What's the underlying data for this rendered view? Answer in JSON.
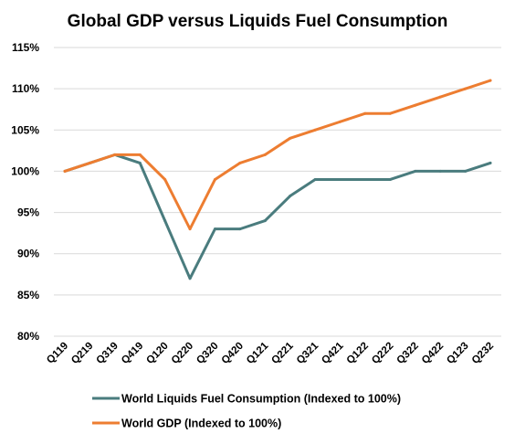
{
  "chart_data": {
    "type": "line",
    "title": "Global GDP versus Liquids Fuel Consumption",
    "categories": [
      "Q119",
      "Q219",
      "Q319",
      "Q419",
      "Q120",
      "Q220",
      "Q320",
      "Q420",
      "Q121",
      "Q221",
      "Q321",
      "Q421",
      "Q122",
      "Q222",
      "Q322",
      "Q422",
      "Q123",
      "Q232"
    ],
    "ylim": [
      80,
      115
    ],
    "yticks": [
      80,
      85,
      90,
      95,
      100,
      105,
      110,
      115
    ],
    "ytick_suffix": "%",
    "grid": true,
    "legend_position": "bottom",
    "series": [
      {
        "name": "World Liquids Fuel Consumption (Indexed to 100%)",
        "color": "#4a7c7e",
        "values": [
          100,
          101,
          102,
          101,
          94,
          87,
          93,
          93,
          94,
          97,
          99,
          99,
          99,
          99,
          100,
          100,
          100,
          101
        ]
      },
      {
        "name": "World GDP (Indexed to 100%)",
        "color": "#ed7d31",
        "values": [
          100,
          101,
          102,
          102,
          99,
          93,
          99,
          101,
          102,
          104,
          105,
          106,
          107,
          107,
          108,
          109,
          110,
          111
        ]
      }
    ]
  }
}
